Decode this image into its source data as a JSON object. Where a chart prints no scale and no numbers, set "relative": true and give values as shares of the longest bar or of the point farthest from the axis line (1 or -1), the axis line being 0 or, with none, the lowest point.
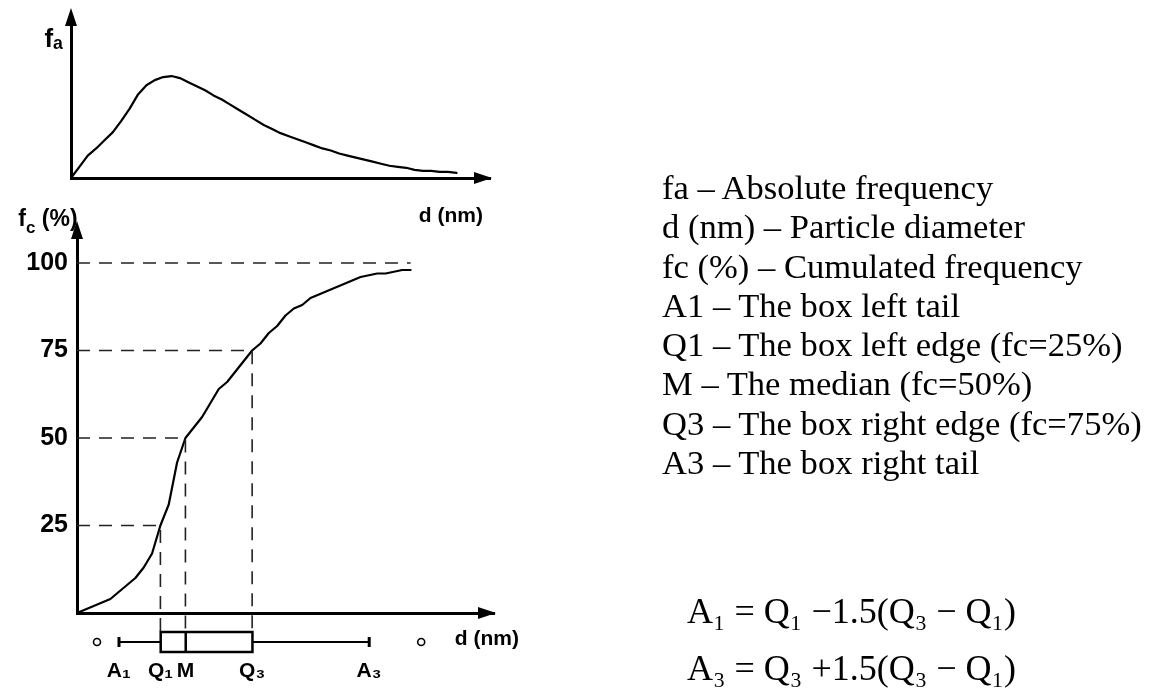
{
  "chart_data": [
    {
      "type": "line",
      "ylabel": "fₐ",
      "xlabel": "d (nm)",
      "relative": true,
      "categories": [
        null,
        null,
        null,
        null,
        null,
        null,
        null,
        null,
        null,
        null,
        null,
        null,
        null,
        null,
        null,
        null,
        null,
        null,
        null,
        null,
        null,
        null,
        null,
        null,
        null,
        null,
        null,
        null,
        null,
        null,
        null,
        null,
        null,
        null,
        null,
        null,
        null,
        null,
        null,
        null,
        null,
        null,
        null,
        null,
        null,
        null,
        null,
        null,
        null,
        null,
        null
      ],
      "series": [
        {
          "color": "#000000",
          "values": [
            0,
            0.11,
            0.22,
            0.29,
            0.37,
            0.45,
            0.56,
            0.68,
            0.82,
            0.91,
            0.96,
            0.99,
            1,
            0.98,
            0.94,
            0.9,
            0.86,
            0.81,
            0.77,
            0.72,
            0.67,
            0.62,
            0.57,
            0.52,
            0.48,
            0.44,
            0.41,
            0.38,
            0.35,
            0.32,
            0.29,
            0.27,
            0.24,
            0.22,
            0.2,
            0.18,
            0.16,
            0.14,
            0.12,
            0.11,
            0.1,
            0.08,
            0.07,
            0.07,
            0.06,
            0.06,
            0.05,
            null,
            null,
            null,
            null
          ]
        }
      ]
    },
    {
      "type": "line",
      "ylabel": "f$_{c}$ (%)",
      "xlabel": "d (nm)",
      "categories": [
        null,
        null,
        null,
        null,
        null,
        "A₁",
        null,
        null,
        null,
        null,
        "Q₁",
        null,
        null,
        "M",
        null,
        null,
        null,
        null,
        null,
        null,
        null,
        "Q₃",
        null,
        null,
        null,
        null,
        null,
        null,
        null,
        null,
        null,
        null,
        null,
        null,
        null,
        "A₃",
        null,
        null,
        null,
        null,
        null,
        null,
        null,
        null,
        null,
        null,
        null,
        null,
        null,
        null,
        null
      ],
      "series": [
        {
          "color": "#000000",
          "values": [
            0,
            1,
            2,
            3,
            4,
            6,
            8,
            10,
            13,
            17,
            25,
            31,
            43,
            50,
            53,
            56,
            60,
            64,
            66,
            69,
            72,
            75,
            77,
            80,
            82,
            85,
            87,
            88,
            90,
            91,
            92,
            93,
            94,
            95,
            96,
            96.5,
            97,
            97,
            97.5,
            98,
            98,
            null,
            null,
            null,
            null,
            null,
            null,
            null,
            null,
            null,
            null
          ]
        }
      ],
      "ylim": [
        0,
        108
      ],
      "yticks": [
        25,
        50,
        75,
        100
      ],
      "ref_lines": [
        {
          "axis": "y",
          "value": 25,
          "color": "#222222",
          "line_style": "dashed"
        },
        {
          "axis": "y",
          "value": 50,
          "color": "#222222",
          "line_style": "dashed"
        },
        {
          "axis": "y",
          "value": 75,
          "color": "#222222",
          "line_style": "dashed"
        },
        {
          "axis": "y",
          "value": 100,
          "color": "#222222",
          "line_style": "dashed"
        }
      ]
    },
    {
      "type": "other",
      "annotations": [
        "fa – Absolute frequency",
        "d (nm) – Particle diameter",
        "fc (%) – Cumulated frequency",
        "A1 – The box left tail",
        "Q1 – The box left edge (fc=25%)",
        "M – The median (fc=50%)",
        "Q3 – The box right edge (fc=75%)",
        "A3 – The box right tail"
      ]
    },
    {
      "type": "other",
      "annotations": [
        "A₁ = Q₁ −1.5(Q₃ − Q₁)",
        "A₃ = Q₃ +1.5(Q₃ − Q₁)"
      ]
    }
  ]
}
